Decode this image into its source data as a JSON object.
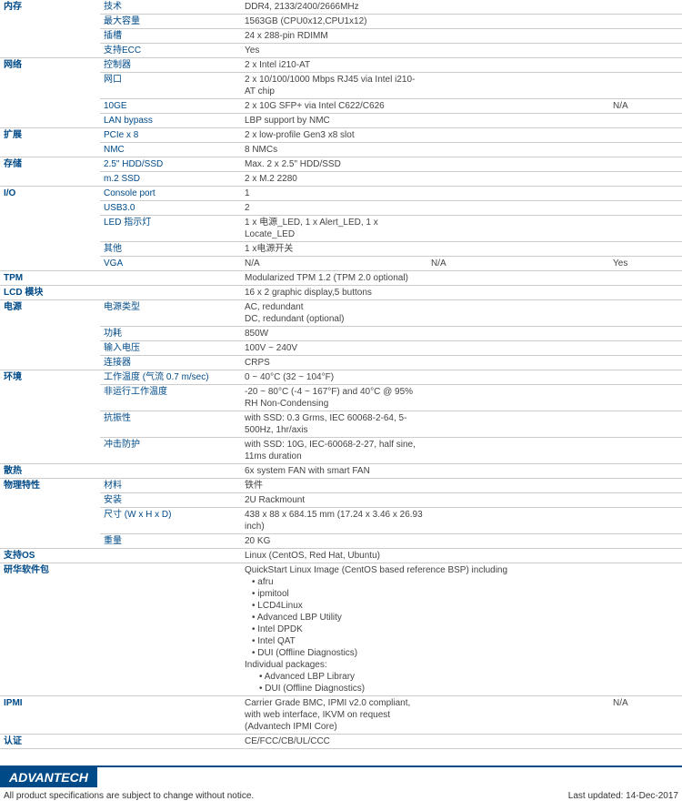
{
  "rows": [
    {
      "cat": "内存",
      "items": [
        {
          "label": "技术",
          "v1": "DDR4, 2133/2400/2666MHz"
        },
        {
          "label": "最大容量",
          "v1": "1563GB (CPU0x12,CPU1x12)"
        },
        {
          "label": "插槽",
          "v1": "24 x 288-pin RDIMM"
        },
        {
          "label": "支持ECC",
          "v1": "Yes"
        }
      ]
    },
    {
      "cat": "网络",
      "items": [
        {
          "label": "控制器",
          "v1": "2 x Intel i210-AT"
        },
        {
          "label": "网口",
          "v1": "2 x 10/100/1000 Mbps RJ45 via Intel i210-AT chip"
        },
        {
          "label": "10GE",
          "v1": "2 x 10G SFP+ via Intel C622/C626",
          "v2": "",
          "v3": "N/A"
        },
        {
          "label": "LAN bypass",
          "v1": "LBP support by NMC"
        }
      ]
    },
    {
      "cat": "扩展",
      "items": [
        {
          "label": "PCIe x 8",
          "v1": "2 x low-profile Gen3 x8 slot"
        },
        {
          "label": "NMC",
          "v1": "8 NMCs"
        }
      ]
    },
    {
      "cat": "存储",
      "items": [
        {
          "label": "2.5\" HDD/SSD",
          "v1": "Max. 2 x 2.5\" HDD/SSD"
        },
        {
          "label": "m.2 SSD",
          "v1": "2 x M.2 2280"
        }
      ]
    },
    {
      "cat": "I/O",
      "items": [
        {
          "label": "Console port",
          "v1": "1"
        },
        {
          "label": "USB3.0",
          "v1": "2"
        },
        {
          "label": "LED 指示灯",
          "v1": "1 x 电源_LED, 1 x Alert_LED, 1 x Locate_LED"
        },
        {
          "label": "其他",
          "v1": "1 x电源开关"
        },
        {
          "label": "VGA",
          "v1": "N/A",
          "v2": "N/A",
          "v3": "Yes"
        }
      ]
    },
    {
      "cat": "TPM",
      "items": [
        {
          "label": "",
          "v1": "Modularized TPM 1.2 (TPM 2.0 optional)"
        }
      ]
    },
    {
      "cat": "LCD 模块",
      "items": [
        {
          "label": "",
          "v1": "16 x 2 graphic display,5 buttons"
        }
      ]
    },
    {
      "cat": "电源",
      "items": [
        {
          "label": "电源类型",
          "v1": "AC, redundant\nDC, redundant (optional)"
        },
        {
          "label": "功耗",
          "v1": "850W"
        },
        {
          "label": "输入电压",
          "v1": "100V ~ 240V"
        },
        {
          "label": "连接器",
          "v1": "CRPS"
        }
      ]
    },
    {
      "cat": "环境",
      "items": [
        {
          "label": "工作温度 (气流 0.7 m/sec)",
          "v1": "0 ~ 40°C (32 ~ 104°F)"
        },
        {
          "label": "非运行工作温度",
          "v1": "-20 ~ 80°C (-4 ~ 167°F) and 40°C @ 95% RH Non-Condensing"
        },
        {
          "label": "抗振性",
          "v1": "with SSD: 0.3 Grms, IEC 60068-2-64, 5-500Hz, 1hr/axis"
        },
        {
          "label": "冲击防护",
          "v1": "with SSD: 10G, IEC-60068-2-27, half sine, 11ms duration"
        }
      ]
    },
    {
      "cat": "散热",
      "items": [
        {
          "label": "",
          "v1": "6x system FAN with smart FAN"
        }
      ]
    },
    {
      "cat": "物理特性",
      "items": [
        {
          "label": "材料",
          "v1": "铁件"
        },
        {
          "label": "安装",
          "v1": "2U Rackmount"
        },
        {
          "label": "尺寸 (W x H x D)",
          "v1": "438 x 88 x 684.15 mm (17.24 x 3.46 x 26.93 inch)"
        },
        {
          "label": "重量",
          "v1": "20 KG"
        }
      ]
    },
    {
      "cat": "支持OS",
      "items": [
        {
          "label": "",
          "v1": "Linux (CentOS, Red Hat, Ubuntu)"
        }
      ]
    }
  ],
  "software": {
    "cat": "研华软件包",
    "intro": "QuickStart Linux Image (CentOS based reference BSP) including",
    "list1": [
      "afru",
      "ipmitool",
      "LCD4Linux",
      "Advanced LBP Utility",
      "Intel DPDK",
      "Intel QAT",
      "DUI (Offline Diagnostics)"
    ],
    "intro2": "Individual packages:",
    "list2": [
      "Advanced LBP Library",
      "DUI (Offline Diagnostics)"
    ]
  },
  "ipmi": {
    "cat": "IPMI",
    "v1": "Carrier Grade BMC, IPMI v2.0 compliant, with web interface, IKVM on request (Advantech IPMI Core)",
    "v3": "N/A"
  },
  "cert": {
    "cat": "认证",
    "v1": "CE/FCC/CB/UL/CCC"
  },
  "logo": "ADVANTECH",
  "footer_left": "All product specifications are subject to change without notice.",
  "footer_right": "Last updated: 14-Dec-2017"
}
